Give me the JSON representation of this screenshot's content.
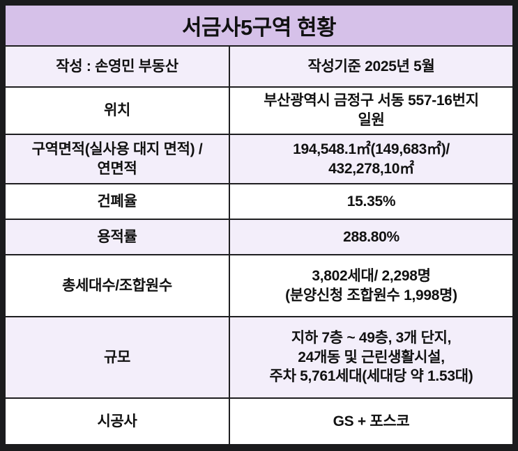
{
  "table": {
    "title": "서금사5구역 현황",
    "rows": [
      {
        "label": "작성 : 손영민 부동산",
        "value": "작성기준 2025년 5월"
      },
      {
        "label": "위치",
        "value": "부산광역시 금정구 서동 557-16번지\n일원"
      },
      {
        "label": "구역면적(실사용 대지 면적) /\n연면적",
        "value": "194,548.1㎡(149,683㎡)/\n432,278,10㎡"
      },
      {
        "label": "건폐율",
        "value": "15.35%"
      },
      {
        "label": "용적률",
        "value": "288.80%"
      },
      {
        "label": "총세대수/조합원수",
        "value": "3,802세대/ 2,298명\n(분양신청 조합원수 1,998명)"
      },
      {
        "label": "규모",
        "value": "지하 7층 ~ 49층, 3개 단지,\n24개동 및 근린생활시설,\n주차 5,761세대(세대당 약 1.53대)"
      },
      {
        "label": "시공사",
        "value": "GS + 포스코"
      }
    ],
    "colors": {
      "frame": "#1b1b1d",
      "title_bg": "#d6c1e9",
      "alt_row_bg": "#f3eefa",
      "row_bg": "#ffffff",
      "grid_line": "#1e1e20",
      "text": "#111111"
    }
  }
}
